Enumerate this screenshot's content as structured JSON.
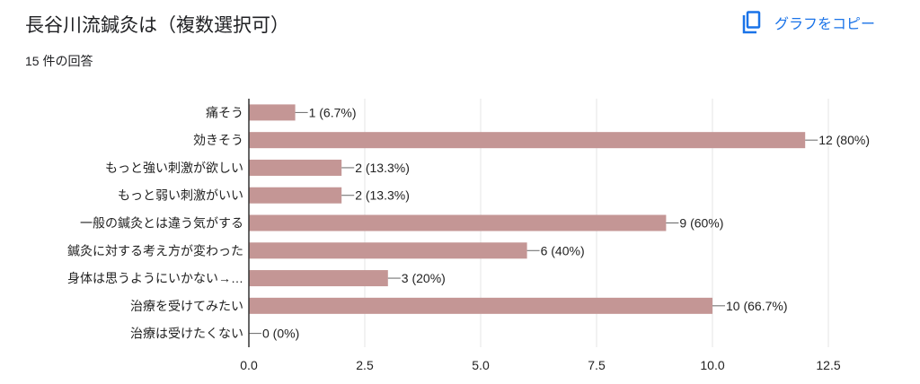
{
  "header": {
    "title": "長谷川流鍼灸は（複数選択可）",
    "response_count": "15 件の回答",
    "copy_label": "グラフをコピー"
  },
  "colors": {
    "bar": "#c49695",
    "accent": "#1a73e8"
  },
  "chart_data": {
    "type": "bar",
    "orientation": "horizontal",
    "categories": [
      "痛そう",
      "効きそう",
      "もっと強い刺激が欲しい",
      "もっと弱い刺激がいい",
      "一般の鍼灸とは違う気がする",
      "鍼灸に対する考え方が変わった",
      "身体は思うようにいかない→…",
      "治療を受けてみたい",
      "治療は受けたくない"
    ],
    "values": [
      1,
      12,
      2,
      2,
      9,
      6,
      3,
      10,
      0
    ],
    "data_labels": [
      "1 (6.7%)",
      "12 (80%)",
      "2 (13.3%)",
      "2 (13.3%)",
      "9 (60%)",
      "6 (40%)",
      "3 (20%)",
      "10 (66.7%)",
      "0 (0%)"
    ],
    "xlim": [
      0,
      12.5
    ],
    "xticks": [
      "0.0",
      "2.5",
      "5.0",
      "7.5",
      "10.0",
      "12.5"
    ],
    "grid": true
  }
}
